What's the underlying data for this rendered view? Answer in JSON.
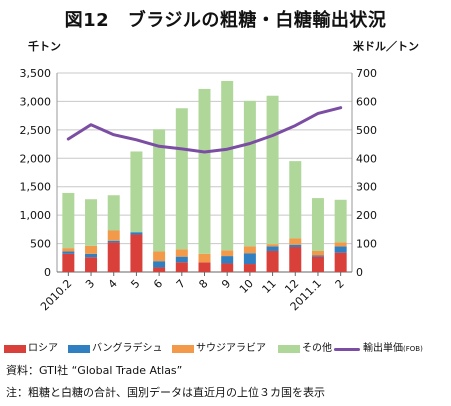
{
  "figure_title": "図12　ブラジルの粗糖・白糖輸出状況",
  "source_note": "資料：GTI社 “Global Trade Atlas”",
  "footnote": "注：粗糖と白糖の合計、国別データは直近月の上位３カ国を表示",
  "legend": {
    "russia": "ロシア",
    "bangladesh": "バングラデシュ",
    "saudi": "サウジアラビア",
    "others": "その他",
    "price_main": "輸出単価",
    "price_sub": "(FOB)"
  },
  "chart_data": {
    "type": "bar",
    "stacked": true,
    "categories": [
      "2010.2",
      "3",
      "4",
      "5",
      "6",
      "7",
      "8",
      "9",
      "10",
      "11",
      "12",
      "2011.1",
      "2"
    ],
    "series": [
      {
        "name": "ロシア",
        "color": "#d9403a",
        "values": [
          320,
          260,
          520,
          660,
          80,
          170,
          170,
          150,
          140,
          370,
          440,
          270,
          340
        ]
      },
      {
        "name": "バングラデシュ",
        "color": "#2f7fc1",
        "values": [
          40,
          60,
          30,
          40,
          110,
          100,
          0,
          130,
          190,
          80,
          40,
          20,
          110
        ]
      },
      {
        "name": "サウジアラビア",
        "color": "#f29a4a",
        "values": [
          60,
          140,
          180,
          0,
          170,
          130,
          150,
          100,
          120,
          40,
          110,
          80,
          70
        ]
      },
      {
        "name": "その他",
        "color": "#b0d79a",
        "values": [
          970,
          820,
          620,
          1420,
          2150,
          2480,
          2900,
          2980,
          2560,
          2610,
          1360,
          930,
          750
        ]
      }
    ],
    "line": {
      "name": "輸出単価(FOB)",
      "color": "#7b4ea3",
      "axis": "right",
      "values": [
        468,
        518,
        483,
        465,
        442,
        433,
        422,
        432,
        452,
        480,
        515,
        558,
        578
      ]
    },
    "ylabel": "千トン",
    "y2label": "米ドル／トン",
    "ylim": [
      0,
      3500
    ],
    "y2lim": [
      0,
      700
    ],
    "yticks": [
      "0",
      "500",
      "1,000",
      "1,500",
      "2,000",
      "2,500",
      "3,000",
      "3,500"
    ],
    "y2ticks": [
      "0",
      "100",
      "200",
      "300",
      "400",
      "500",
      "600",
      "700"
    ],
    "grid": true,
    "legend_position": "bottom"
  }
}
